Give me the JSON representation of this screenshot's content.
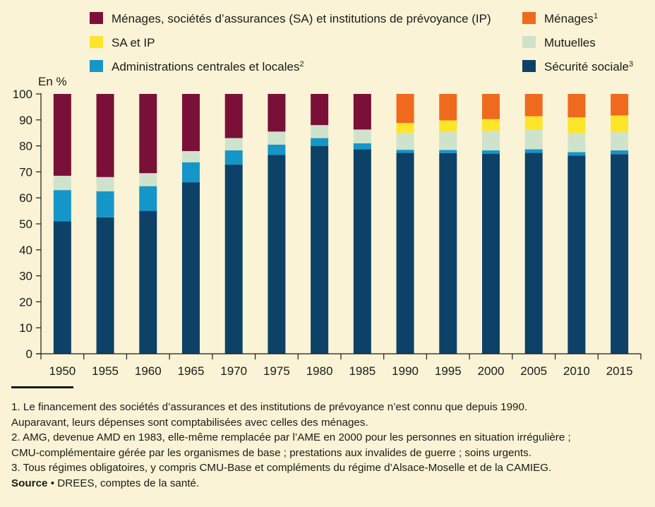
{
  "chart_data": {
    "type": "bar",
    "stacked": true,
    "y_unit_label": "En %",
    "ylim": [
      0,
      100
    ],
    "yticks": [
      0,
      10,
      20,
      30,
      40,
      50,
      60,
      70,
      80,
      90,
      100
    ],
    "categories": [
      "1950",
      "1955",
      "1960",
      "1965",
      "1970",
      "1975",
      "1980",
      "1985",
      "1990",
      "1995",
      "2000",
      "2005",
      "2010",
      "2015"
    ],
    "series": [
      {
        "key": "secu",
        "name": "Sécurité sociale",
        "sup": "3",
        "color": "#0d4168",
        "values": [
          51.0,
          52.5,
          55.0,
          66.0,
          72.8,
          76.5,
          80.0,
          78.7,
          77.3,
          77.2,
          77.0,
          77.3,
          76.3,
          76.8
        ]
      },
      {
        "key": "admin",
        "name": "Administrations centrales et locales",
        "sup": "2",
        "color": "#1596c8",
        "values": [
          12.0,
          10.0,
          9.5,
          7.7,
          5.5,
          4.0,
          3.0,
          2.3,
          1.2,
          1.2,
          1.3,
          1.4,
          1.3,
          1.5
        ]
      },
      {
        "key": "mut",
        "name": "Mutuelles",
        "sup": "",
        "color": "#cfe3cc",
        "values": [
          5.5,
          5.5,
          5.0,
          4.3,
          4.7,
          5.0,
          5.0,
          5.3,
          6.5,
          7.0,
          7.5,
          7.5,
          7.3,
          7.0
        ]
      },
      {
        "key": "saip",
        "name": "SA et IP",
        "sup": "",
        "color": "#fde52a",
        "values": [
          0,
          0,
          0,
          0,
          0,
          0,
          0,
          0,
          3.8,
          4.4,
          4.5,
          5.2,
          6.1,
          6.4
        ]
      },
      {
        "key": "menages_sa_ip",
        "name": "Ménages, sociétés d’assurances (SA) et institutions de prévoyance (IP)",
        "sup": "",
        "color": "#7a1038",
        "values": [
          31.5,
          32.0,
          30.5,
          22.0,
          17.0,
          14.5,
          12.0,
          13.7,
          0,
          0,
          0,
          0,
          0,
          0
        ]
      },
      {
        "key": "menages",
        "name": "Ménages",
        "sup": "1",
        "color": "#f06a1e",
        "values": [
          0,
          0,
          0,
          0,
          0,
          0,
          0,
          0,
          11.2,
          10.2,
          9.7,
          8.6,
          9.0,
          8.3
        ]
      }
    ]
  },
  "legend_order": [
    "menages_sa_ip",
    "menages",
    "saip",
    "mut",
    "admin",
    "secu"
  ],
  "notes": {
    "lines": [
      "1. Le financement des sociétés d’assurances et des institutions de prévoyance n’est connu que depuis 1990.",
      "Auparavant, leurs dépenses sont comptabilisées avec celles des ménages.",
      "2. AMG, devenue AMD en 1983, elle-même remplacée par l’AME en 2000 pour les personnes en situation irrégulière ;",
      "CMU-complémentaire gérée par les organismes de base ; prestations aux invalides de guerre ; soins urgents.",
      "3. Tous régimes obligatoires, y compris CMU-Base et compléments du régime d’Alsace-Moselle et de la CAMIEG."
    ],
    "source_label": "Source",
    "source_bullet": "•",
    "source_text": "DREES, comptes de la santé."
  }
}
